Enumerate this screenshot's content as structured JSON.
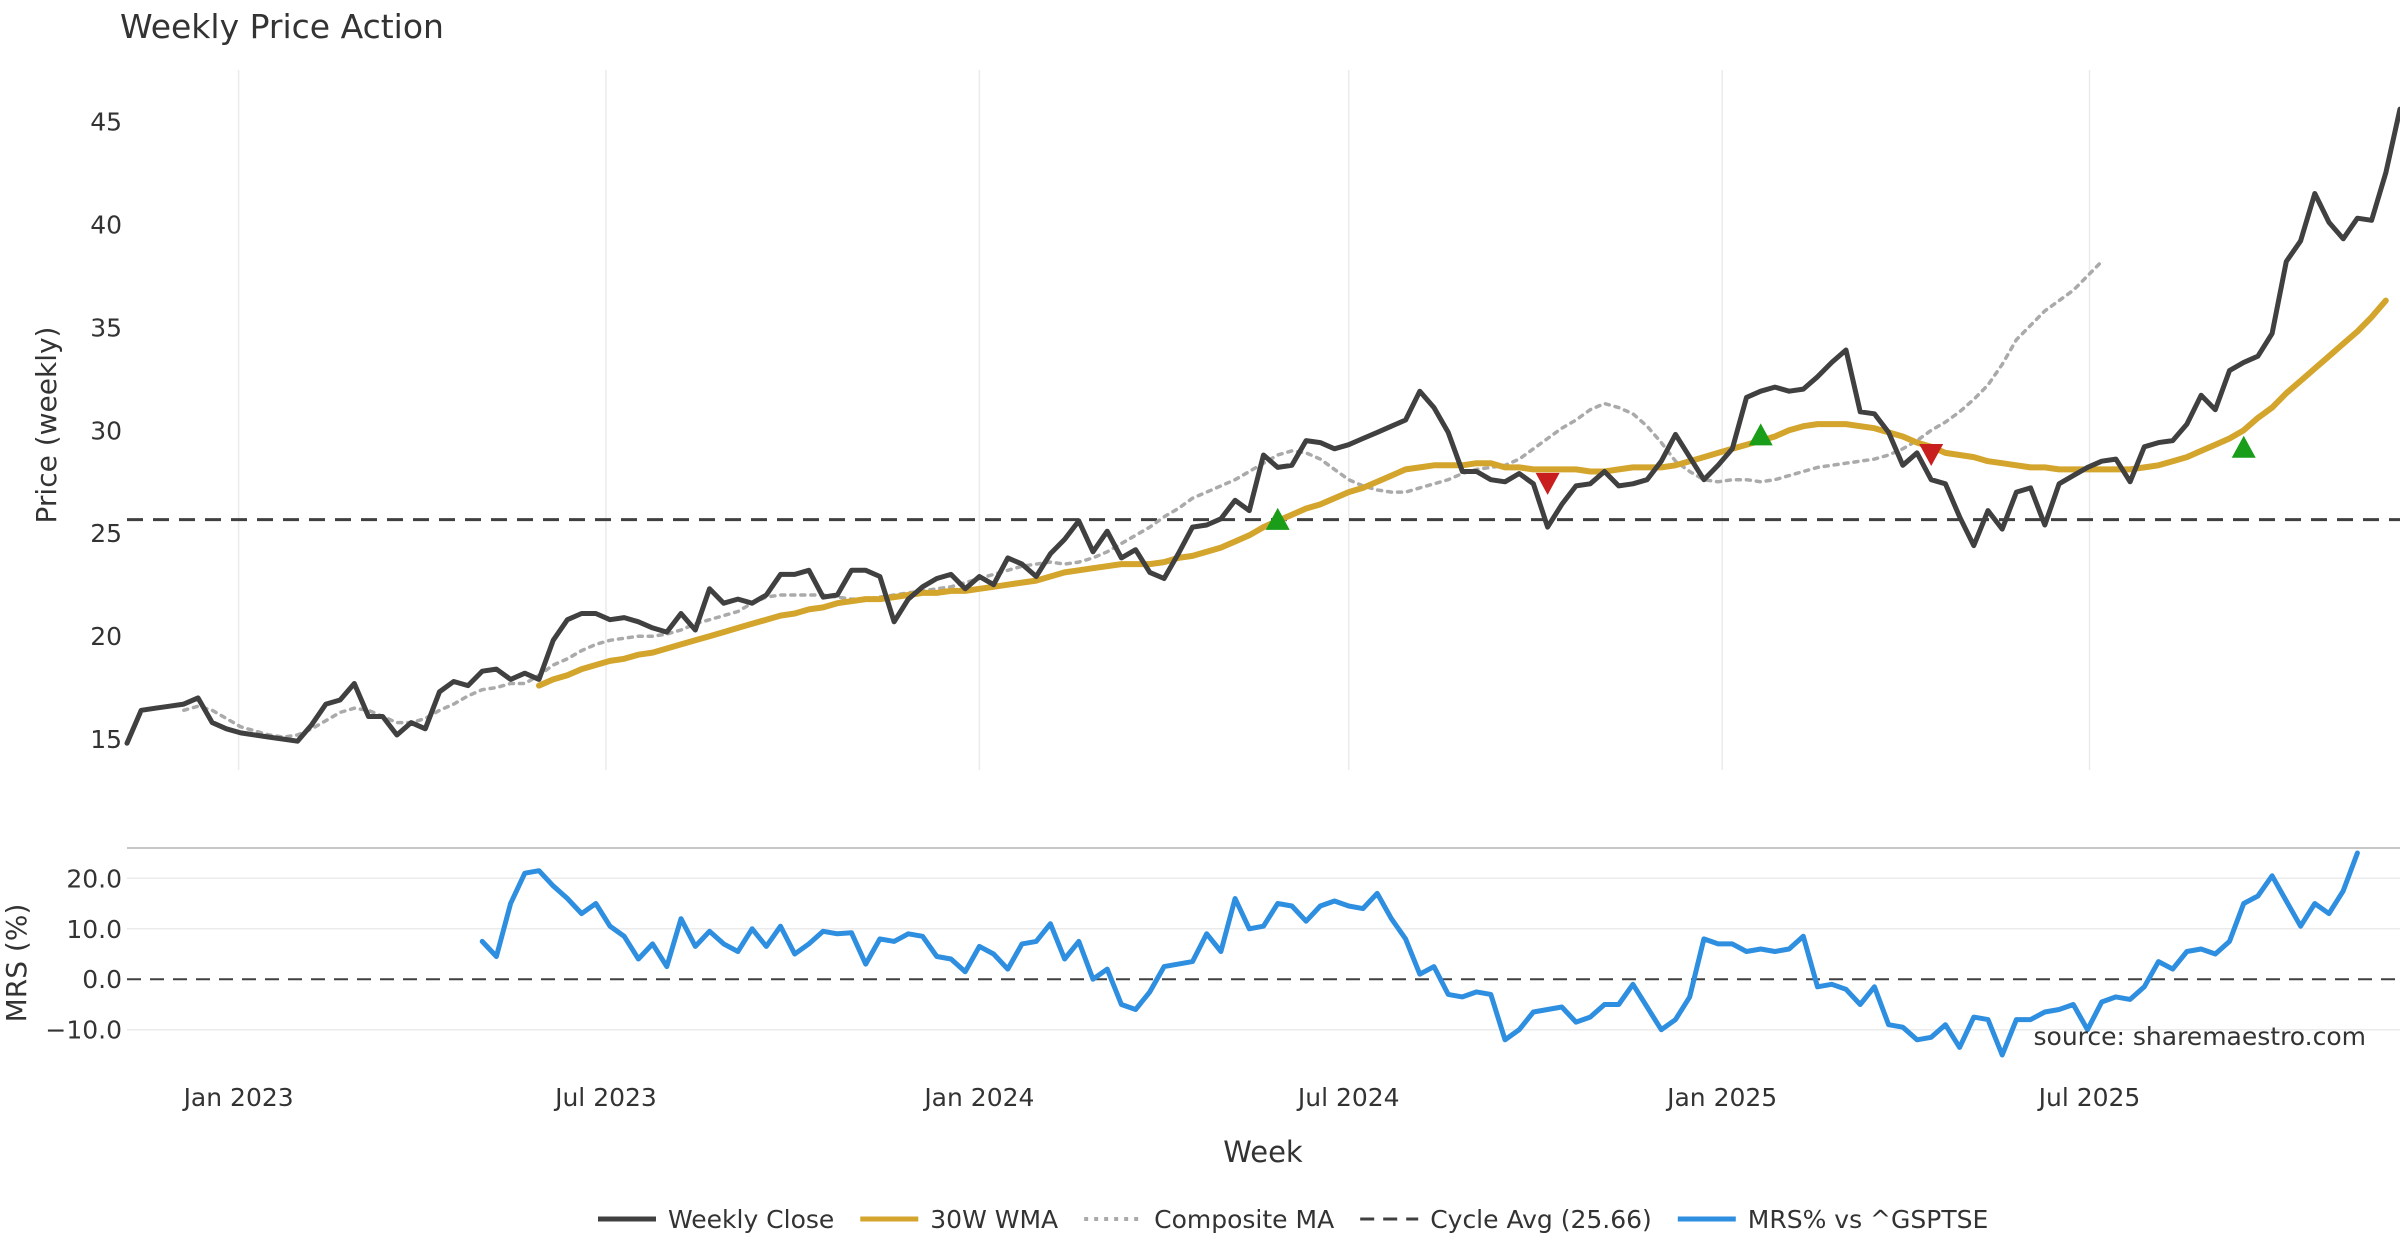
{
  "chart_data": {
    "type": "line",
    "title": "Weekly Price Action",
    "xlabel": "Week",
    "x_ticks": [
      "Jan 2023",
      "Jul 2023",
      "Jan 2024",
      "Jul 2024",
      "Jan 2025",
      "Jul 2025"
    ],
    "x_start": "2022-11-07",
    "x_step_weeks": 1,
    "source": "source: sharemaestro.com",
    "price_panel": {
      "ylabel": "Price (weekly)",
      "ylim": [
        13.5,
        47.5
      ],
      "yticks": [
        15,
        20,
        25,
        30,
        35,
        40,
        45
      ],
      "grid": true,
      "cycle_avg": 25.66,
      "series": [
        {
          "name": "Weekly Close",
          "color": "#404040",
          "start_index": 0,
          "values": [
            14.8,
            16.4,
            16.5,
            16.6,
            16.7,
            17.0,
            15.8,
            15.5,
            15.3,
            15.2,
            15.1,
            15.0,
            14.9,
            15.7,
            16.7,
            16.9,
            17.7,
            16.1,
            16.1,
            15.2,
            15.8,
            15.5,
            17.3,
            17.8,
            17.6,
            18.3,
            18.4,
            17.9,
            18.2,
            17.9,
            19.8,
            20.8,
            21.1,
            21.1,
            20.8,
            20.9,
            20.7,
            20.4,
            20.2,
            21.1,
            20.3,
            22.3,
            21.6,
            21.8,
            21.6,
            22.0,
            23.0,
            23.0,
            23.2,
            21.9,
            22.0,
            23.2,
            23.2,
            22.9,
            20.7,
            21.8,
            22.4,
            22.8,
            23.0,
            22.3,
            22.9,
            22.5,
            23.8,
            23.5,
            22.9,
            24.0,
            24.7,
            25.6,
            24.1,
            25.1,
            23.8,
            24.2,
            23.1,
            22.8,
            24.0,
            25.3,
            25.4,
            25.7,
            26.6,
            26.1,
            28.8,
            28.2,
            28.3,
            29.5,
            29.4,
            29.1,
            29.3,
            29.6,
            29.9,
            30.2,
            30.5,
            31.9,
            31.1,
            29.9,
            28.0,
            28.0,
            27.6,
            27.5,
            27.9,
            27.4,
            25.3,
            26.4,
            27.3,
            27.4,
            28.0,
            27.3,
            27.4,
            27.6,
            28.5,
            29.8,
            28.7,
            27.6,
            28.3,
            29.1,
            31.6,
            31.9,
            32.1,
            31.9,
            32.0,
            32.6,
            33.3,
            33.9,
            30.9,
            30.8,
            29.9,
            28.3,
            28.9,
            27.6,
            27.4,
            25.8,
            24.4,
            26.1,
            25.2,
            27.0,
            27.2,
            25.4,
            27.4,
            27.8,
            28.2,
            28.5,
            28.6,
            27.5,
            29.2,
            29.4,
            29.5,
            30.3,
            31.7,
            31.0,
            32.9,
            33.3,
            33.6,
            34.7,
            38.2,
            39.2,
            41.5,
            40.1,
            39.3,
            40.3,
            40.2,
            42.5,
            45.6
          ]
        },
        {
          "name": "30W WMA",
          "color": "#d4a52c",
          "start_index": 29,
          "values": [
            17.6,
            17.9,
            18.1,
            18.4,
            18.6,
            18.8,
            18.9,
            19.1,
            19.2,
            19.4,
            19.6,
            19.8,
            20.0,
            20.2,
            20.4,
            20.6,
            20.8,
            21.0,
            21.1,
            21.3,
            21.4,
            21.6,
            21.7,
            21.8,
            21.8,
            21.9,
            22.0,
            22.1,
            22.1,
            22.2,
            22.2,
            22.3,
            22.4,
            22.5,
            22.6,
            22.7,
            22.9,
            23.1,
            23.2,
            23.3,
            23.4,
            23.5,
            23.5,
            23.5,
            23.6,
            23.8,
            23.9,
            24.1,
            24.3,
            24.6,
            24.9,
            25.3,
            25.6,
            25.9,
            26.2,
            26.4,
            26.7,
            27.0,
            27.2,
            27.5,
            27.8,
            28.1,
            28.2,
            28.3,
            28.3,
            28.3,
            28.4,
            28.4,
            28.2,
            28.2,
            28.1,
            28.1,
            28.1,
            28.1,
            28.0,
            28.0,
            28.1,
            28.2,
            28.2,
            28.2,
            28.3,
            28.5,
            28.7,
            28.9,
            29.1,
            29.3,
            29.5,
            29.7,
            30.0,
            30.2,
            30.3,
            30.3,
            30.3,
            30.2,
            30.1,
            29.9,
            29.7,
            29.4,
            29.2,
            28.9,
            28.8,
            28.7,
            28.5,
            28.4,
            28.3,
            28.2,
            28.2,
            28.1,
            28.1,
            28.1,
            28.1,
            28.1,
            28.1,
            28.2,
            28.3,
            28.5,
            28.7,
            29.0,
            29.3,
            29.6,
            30.0,
            30.6,
            31.1,
            31.8,
            32.4,
            33.0,
            33.6,
            34.2,
            34.8,
            35.5,
            36.3
          ]
        },
        {
          "name": "Composite MA",
          "color": "#aaaaaa",
          "dashed": true,
          "start_index": 4,
          "values": [
            16.4,
            16.6,
            16.4,
            16.0,
            15.6,
            15.4,
            15.2,
            15.1,
            15.2,
            15.5,
            15.9,
            16.3,
            16.5,
            16.4,
            16.1,
            15.8,
            15.8,
            16.0,
            16.4,
            16.7,
            17.1,
            17.4,
            17.5,
            17.7,
            17.7,
            18.1,
            18.6,
            18.9,
            19.3,
            19.6,
            19.8,
            19.9,
            20.0,
            20.0,
            20.1,
            20.3,
            20.6,
            20.8,
            21.0,
            21.2,
            21.6,
            21.9,
            22.0,
            22.0,
            22.0,
            22.0,
            21.9,
            21.8,
            21.8,
            21.9,
            22.0,
            22.1,
            22.2,
            22.3,
            22.4,
            22.6,
            22.8,
            23.0,
            23.2,
            23.4,
            23.5,
            23.6,
            23.5,
            23.6,
            23.8,
            24.1,
            24.5,
            24.9,
            25.3,
            25.8,
            26.2,
            26.7,
            27.0,
            27.3,
            27.6,
            28.0,
            28.4,
            28.8,
            29.0,
            28.9,
            28.6,
            28.1,
            27.6,
            27.3,
            27.1,
            27.0,
            27.0,
            27.2,
            27.4,
            27.6,
            27.9,
            28.1,
            28.2,
            28.3,
            28.6,
            29.1,
            29.6,
            30.1,
            30.5,
            31.0,
            31.3,
            31.1,
            30.8,
            30.2,
            29.4,
            28.5,
            28.0,
            27.6,
            27.5,
            27.6,
            27.6,
            27.5,
            27.6,
            27.8,
            28.0,
            28.2,
            28.3,
            28.4,
            28.5,
            28.6,
            28.8,
            29.1,
            29.5,
            30.0,
            30.4,
            30.9,
            31.5,
            32.2,
            33.2,
            34.4,
            35.1,
            35.8,
            36.3,
            36.8,
            37.5,
            38.2
          ]
        }
      ],
      "signals": [
        {
          "type": "buy",
          "index": 81,
          "value": 25.7,
          "color": "#1a9e1a"
        },
        {
          "type": "sell",
          "index": 100,
          "value": 27.4,
          "color": "#c81e1e"
        },
        {
          "type": "buy",
          "index": 115,
          "value": 29.8,
          "color": "#1a9e1a"
        },
        {
          "type": "sell",
          "index": 127,
          "value": 28.8,
          "color": "#c81e1e"
        },
        {
          "type": "buy",
          "index": 149,
          "value": 29.2,
          "color": "#1a9e1a"
        }
      ]
    },
    "mrs_panel": {
      "ylabel": "MRS (%)",
      "ylim": [
        -16,
        26
      ],
      "yticks": [
        20.0,
        10.0,
        0.0,
        -10.0
      ],
      "ytick_labels": [
        "20.0",
        "10.0",
        "0.0",
        "−10.0"
      ],
      "series": [
        {
          "name": "MRS% vs ^GSPTSE",
          "color": "#2e8ee0",
          "start_index": 25,
          "values": [
            7.5,
            4.5,
            15.0,
            21.0,
            21.5,
            18.5,
            16.0,
            13.0,
            15.0,
            10.5,
            8.5,
            4.0,
            7.0,
            2.5,
            12.0,
            6.5,
            9.5,
            7.0,
            5.5,
            10.0,
            6.5,
            10.5,
            5.0,
            7.0,
            9.5,
            9.0,
            9.2,
            3.0,
            8.0,
            7.5,
            9.0,
            8.5,
            4.5,
            4.0,
            1.5,
            6.5,
            5.0,
            2.0,
            7.0,
            7.5,
            11.0,
            4.0,
            7.5,
            0.0,
            2.0,
            -5.0,
            -6.0,
            -2.5,
            2.5,
            3.0,
            3.5,
            9.0,
            5.5,
            16.0,
            10.0,
            10.5,
            15.0,
            14.5,
            11.5,
            14.5,
            15.5,
            14.5,
            14.0,
            17.0,
            12.0,
            8.0,
            1.0,
            2.5,
            -3.0,
            -3.5,
            -2.5,
            -3.0,
            -12.0,
            -10.0,
            -6.5,
            -6.0,
            -5.5,
            -8.5,
            -7.5,
            -5.0,
            -5.0,
            -1.0,
            -5.5,
            -10.0,
            -8.0,
            -3.5,
            8.0,
            7.0,
            7.0,
            5.5,
            6.0,
            5.5,
            6.0,
            8.5,
            -1.5,
            -1.0,
            -2.0,
            -5.0,
            -1.5,
            -9.0,
            -9.5,
            -12.0,
            -11.5,
            -9.0,
            -13.5,
            -7.5,
            -8.0,
            -15.0,
            -8.0,
            -8.0,
            -6.5,
            -6.0,
            -5.0,
            -10.0,
            -4.5,
            -3.5,
            -4.0,
            -1.5,
            3.5,
            2.0,
            5.5,
            6.0,
            5.0,
            7.5,
            15.0,
            16.5,
            20.5,
            15.5,
            10.5,
            15.0,
            13.0,
            17.5,
            25.0
          ]
        }
      ]
    },
    "legend": {
      "position": "bottom-center",
      "entries": [
        {
          "label": "Weekly Close",
          "color": "#404040",
          "style": "solid"
        },
        {
          "label": "30W WMA",
          "color": "#d4a52c",
          "style": "solid"
        },
        {
          "label": "Composite MA",
          "color": "#aaaaaa",
          "style": "dotted"
        },
        {
          "label": "Cycle Avg (25.66)",
          "color": "#404040",
          "style": "dashed"
        },
        {
          "label": "MRS% vs ^GSPTSE",
          "color": "#2e8ee0",
          "style": "solid"
        }
      ]
    }
  }
}
